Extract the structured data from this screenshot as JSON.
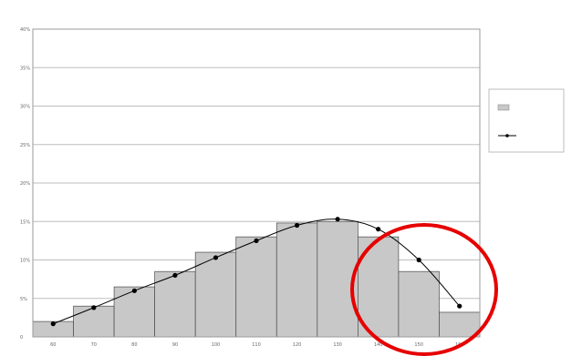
{
  "chart_data": {
    "type": "bar",
    "categories": [
      "60",
      "70",
      "80",
      "90",
      "100",
      "110",
      "120",
      "130",
      "140",
      "150",
      "160"
    ],
    "x_tick_labels": [
      "60",
      "70",
      "80",
      "90",
      "100",
      "110",
      "120",
      "130",
      "140",
      "150",
      "160"
    ],
    "y_tick_labels": [
      "0",
      "5%",
      "10%",
      "15%",
      "20%",
      "25%",
      "30%",
      "35%",
      "40%"
    ],
    "ylim": [
      0,
      40
    ],
    "grid": true,
    "legend_position": "right",
    "series": [
      {
        "kind": "bar",
        "legend_label": "",
        "values": [
          2,
          4,
          6.5,
          8.5,
          11,
          13,
          14.8,
          15,
          13,
          8.5,
          3.2
        ],
        "color": "#c8c8c8"
      },
      {
        "kind": "line",
        "legend_label": "",
        "values": [
          1.7,
          3.8,
          6,
          8,
          10.3,
          12.5,
          14.5,
          15.3,
          14,
          10,
          4
        ],
        "color": "#000000"
      }
    ],
    "annotation": {
      "shape": "circle",
      "color": "#e60000",
      "categories_highlighted": [
        "140",
        "150",
        "160"
      ]
    }
  }
}
